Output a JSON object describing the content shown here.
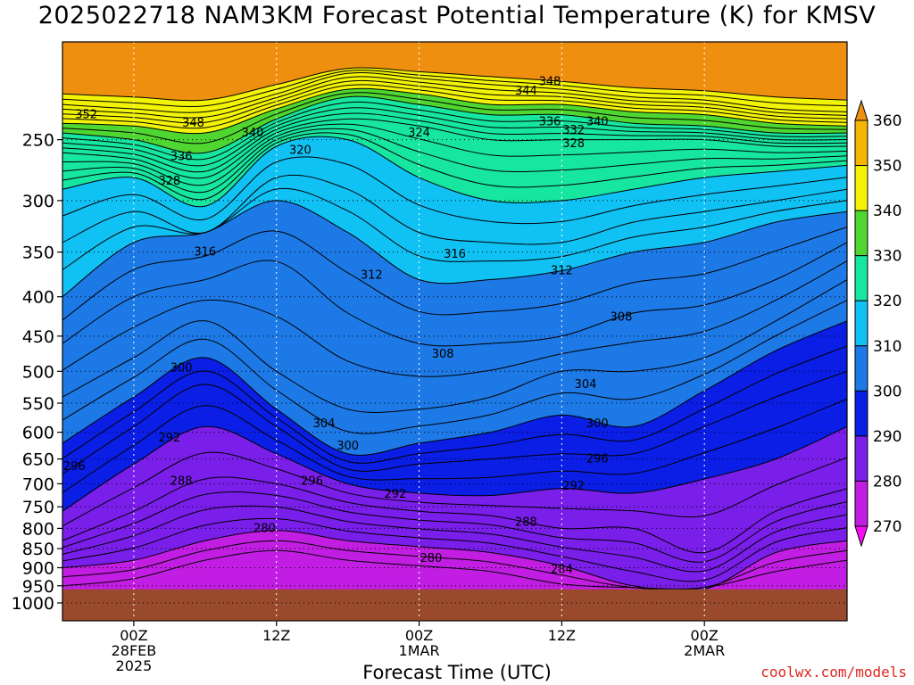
{
  "chart_data": {
    "type": "contour",
    "title": "2025022718 NAM3KM Forecast Potential Temperature (K) for KMSV",
    "xlabel": "Forecast Time (UTC)",
    "ylabel": "",
    "credit": "coolwx.com/models",
    "y_scale": "log-pressure",
    "y_unit": "hPa",
    "y_range": [
      1000,
      200
    ],
    "y_ticks": [
      "250",
      "300",
      "350",
      "400",
      "450",
      "500",
      "550",
      "600",
      "650",
      "700",
      "750",
      "800",
      "850",
      "900",
      "950",
      "1000"
    ],
    "x_range_hours": [
      18,
      84
    ],
    "x_ticks": [
      {
        "hour": 24,
        "lines": [
          "00Z",
          "28FEB",
          "2025"
        ]
      },
      {
        "hour": 36,
        "lines": [
          "12Z"
        ]
      },
      {
        "hour": 48,
        "lines": [
          "00Z",
          "1MAR"
        ]
      },
      {
        "hour": 60,
        "lines": [
          "12Z"
        ]
      },
      {
        "hour": 72,
        "lines": [
          "00Z",
          "2MAR"
        ]
      }
    ],
    "grid": true,
    "colorbar": {
      "values": [
        "360",
        "350",
        "340",
        "330",
        "320",
        "310",
        "300",
        "290",
        "280",
        "270"
      ],
      "colors": [
        "#ef8f0f",
        "#f6b600",
        "#f3f306",
        "#4fd630",
        "#17e6a0",
        "#10c1f4",
        "#1d79e6",
        "#0a1ee6",
        "#7a1ee9",
        "#c21ee3",
        "#f50df3"
      ]
    },
    "contour_interval_K": 2,
    "ground_color": "#9a4a2c",
    "ground_top_hPa": 960,
    "surface_profile": {
      "hours": [
        18,
        21,
        24,
        27,
        30,
        33,
        36,
        39,
        42,
        45,
        48,
        51,
        54,
        57,
        60,
        63,
        66,
        69,
        72,
        75,
        78,
        81,
        84
      ],
      "pressure_hPa": [
        960,
        960,
        960,
        960,
        960,
        960,
        960,
        960,
        960,
        960,
        960,
        960,
        960,
        960,
        960,
        960,
        960,
        960,
        960,
        960,
        960,
        960,
        960
      ]
    },
    "isentropes": [
      {
        "theta": 280,
        "hours": [
          18,
          24,
          30,
          36,
          42,
          48,
          54,
          60,
          66,
          72,
          78,
          84
        ],
        "pressure_hPa": [
          900,
          880,
          830,
          805,
          830,
          845,
          860,
          895,
          950,
          960,
          860,
          830
        ]
      },
      {
        "theta": 288,
        "hours": [
          18,
          24,
          30,
          36,
          42,
          48,
          54,
          60,
          66,
          72,
          78,
          84
        ],
        "pressure_hPa": [
          830,
          760,
          690,
          700,
          740,
          760,
          770,
          800,
          800,
          860,
          760,
          710
        ]
      },
      {
        "theta": 292,
        "hours": [
          18,
          24,
          30,
          36,
          42,
          48,
          54,
          60,
          66,
          72,
          78,
          84
        ],
        "pressure_hPa": [
          760,
          660,
          590,
          640,
          700,
          720,
          725,
          710,
          720,
          690,
          650,
          590
        ]
      },
      {
        "theta": 296,
        "hours": [
          18,
          24,
          30,
          36,
          42,
          48,
          54,
          60,
          66,
          72,
          78,
          84
        ],
        "pressure_hPa": [
          680,
          590,
          520,
          590,
          670,
          660,
          650,
          640,
          640,
          590,
          540,
          500
        ]
      },
      {
        "theta": 300,
        "hours": [
          18,
          24,
          30,
          36,
          42,
          48,
          54,
          60,
          66,
          72,
          78,
          84
        ],
        "pressure_hPa": [
          620,
          540,
          480,
          560,
          640,
          620,
          600,
          570,
          590,
          530,
          470,
          430
        ]
      },
      {
        "theta": 304,
        "hours": [
          18,
          24,
          30,
          36,
          42,
          48,
          54,
          60,
          66,
          72,
          78,
          84
        ],
        "pressure_hPa": [
          540,
          480,
          430,
          500,
          560,
          560,
          540,
          500,
          500,
          480,
          430,
          380
        ]
      },
      {
        "theta": 308,
        "hours": [
          18,
          24,
          30,
          36,
          42,
          48,
          54,
          60,
          66,
          72,
          78,
          84
        ],
        "pressure_hPa": [
          460,
          400,
          380,
          360,
          420,
          460,
          460,
          450,
          420,
          410,
          380,
          340
        ]
      },
      {
        "theta": 312,
        "hours": [
          18,
          24,
          30,
          36,
          42,
          48,
          54,
          60,
          66,
          72,
          78,
          84
        ],
        "pressure_hPa": [
          400,
          340,
          330,
          300,
          330,
          380,
          380,
          370,
          350,
          340,
          320,
          310
        ]
      },
      {
        "theta": 316,
        "hours": [
          18,
          24,
          30,
          36,
          42,
          48,
          54,
          60,
          66,
          72,
          78,
          84
        ],
        "pressure_hPa": [
          340,
          310,
          330,
          280,
          290,
          330,
          340,
          340,
          320,
          310,
          300,
          290
        ]
      },
      {
        "theta": 320,
        "hours": [
          18,
          24,
          30,
          36,
          42,
          48,
          54,
          60,
          66,
          72,
          78,
          84
        ],
        "pressure_hPa": [
          290,
          280,
          305,
          255,
          250,
          280,
          300,
          300,
          290,
          280,
          275,
          270
        ]
      },
      {
        "theta": 328,
        "hours": [
          18,
          24,
          30,
          36,
          42,
          48,
          54,
          60,
          66,
          72,
          78,
          84
        ],
        "pressure_hPa": [
          260,
          265,
          280,
          245,
          235,
          240,
          250,
          250,
          250,
          250,
          255,
          255
        ]
      },
      {
        "theta": 336,
        "hours": [
          18,
          24,
          30,
          36,
          42,
          48,
          54,
          60,
          66,
          72,
          78,
          84
        ],
        "pressure_hPa": [
          245,
          250,
          260,
          235,
          220,
          225,
          232,
          232,
          238,
          240,
          245,
          245
        ]
      },
      {
        "theta": 340,
        "hours": [
          18,
          24,
          30,
          36,
          42,
          48,
          54,
          60,
          66,
          72,
          78,
          84
        ],
        "pressure_hPa": [
          238,
          240,
          245,
          228,
          215,
          218,
          225,
          225,
          230,
          232,
          238,
          240
        ]
      },
      {
        "theta": 348,
        "hours": [
          18,
          24,
          30,
          36,
          42,
          48,
          54,
          60,
          66,
          72,
          78,
          84
        ],
        "pressure_hPa": [
          225,
          228,
          230,
          218,
          205,
          208,
          212,
          215,
          220,
          222,
          228,
          230
        ]
      },
      {
        "theta": 352,
        "hours": [
          18,
          24,
          30,
          36,
          42,
          48,
          54,
          60,
          66,
          72,
          78,
          84
        ],
        "pressure_hPa": [
          218,
          220,
          222,
          212,
          202,
          204,
          207,
          210,
          214,
          216,
          220,
          222
        ]
      }
    ],
    "contour_labels": [
      {
        "text": "352",
        "hour": 20,
        "hPa": 232
      },
      {
        "text": "348",
        "hour": 29,
        "hPa": 238
      },
      {
        "text": "340",
        "hour": 34,
        "hPa": 245
      },
      {
        "text": "336",
        "hour": 28,
        "hPa": 263
      },
      {
        "text": "328",
        "hour": 27,
        "hPa": 283
      },
      {
        "text": "320",
        "hour": 38,
        "hPa": 258
      },
      {
        "text": "324",
        "hour": 48,
        "hPa": 245
      },
      {
        "text": "348",
        "hour": 59,
        "hPa": 210
      },
      {
        "text": "344",
        "hour": 57,
        "hPa": 216
      },
      {
        "text": "336",
        "hour": 59,
        "hPa": 237
      },
      {
        "text": "340",
        "hour": 63,
        "hPa": 237
      },
      {
        "text": "332",
        "hour": 61,
        "hPa": 243
      },
      {
        "text": "328",
        "hour": 61,
        "hPa": 253
      },
      {
        "text": "316",
        "hour": 30,
        "hPa": 350
      },
      {
        "text": "312",
        "hour": 44,
        "hPa": 375
      },
      {
        "text": "316",
        "hour": 51,
        "hPa": 352
      },
      {
        "text": "312",
        "hour": 60,
        "hPa": 370
      },
      {
        "text": "308",
        "hour": 65,
        "hPa": 425
      },
      {
        "text": "308",
        "hour": 50,
        "hPa": 475
      },
      {
        "text": "304",
        "hour": 62,
        "hPa": 520
      },
      {
        "text": "300",
        "hour": 28,
        "hPa": 495
      },
      {
        "text": "304",
        "hour": 40,
        "hPa": 585
      },
      {
        "text": "300",
        "hour": 42,
        "hPa": 625
      },
      {
        "text": "300",
        "hour": 63,
        "hPa": 585
      },
      {
        "text": "292",
        "hour": 27,
        "hPa": 610
      },
      {
        "text": "296",
        "hour": 19,
        "hPa": 665
      },
      {
        "text": "296",
        "hour": 63,
        "hPa": 650
      },
      {
        "text": "288",
        "hour": 28,
        "hPa": 695
      },
      {
        "text": "296",
        "hour": 39,
        "hPa": 695
      },
      {
        "text": "292",
        "hour": 46,
        "hPa": 722
      },
      {
        "text": "292",
        "hour": 61,
        "hPa": 705
      },
      {
        "text": "288",
        "hour": 57,
        "hPa": 785
      },
      {
        "text": "280",
        "hour": 35,
        "hPa": 800
      },
      {
        "text": "280",
        "hour": 49,
        "hPa": 875
      },
      {
        "text": "284",
        "hour": 60,
        "hPa": 905
      }
    ]
  }
}
